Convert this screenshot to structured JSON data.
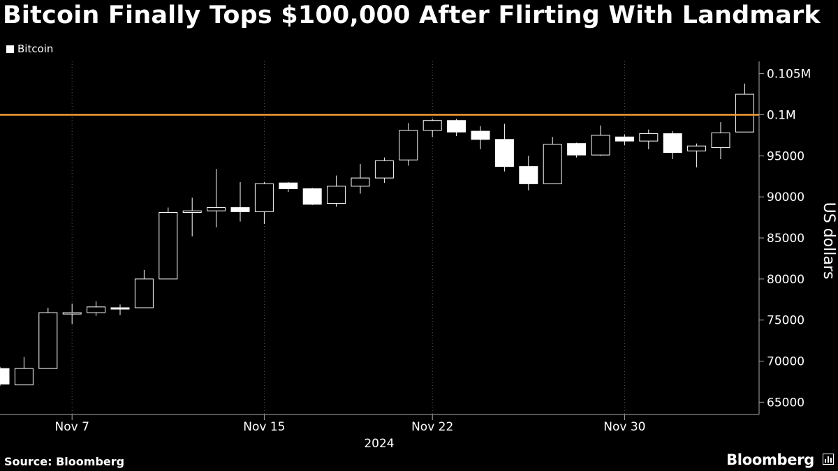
{
  "title": "Bitcoin Finally Tops $100,000 After Flirting With Landmark",
  "source": "Source: Bloomberg",
  "brand": "Bloomberg",
  "colors": {
    "background": "#000000",
    "candle": "#ffffff",
    "threshold": "#f7a034",
    "grid": "#555555"
  },
  "icons": {
    "brand": "bloomberg-chart-icon"
  },
  "chart_data": {
    "type": "candlestick",
    "legend": [
      "Bitcoin"
    ],
    "ylabel": "US dollars",
    "xlabel": "2024",
    "ylim": [
      63500,
      106500
    ],
    "y_ticks": [
      {
        "value": 65000,
        "label": "65000"
      },
      {
        "value": 70000,
        "label": "70000"
      },
      {
        "value": 75000,
        "label": "75000"
      },
      {
        "value": 80000,
        "label": "80000"
      },
      {
        "value": 85000,
        "label": "85000"
      },
      {
        "value": 90000,
        "label": "90000"
      },
      {
        "value": 95000,
        "label": "95000"
      },
      {
        "value": 100000,
        "label": "0.1M"
      },
      {
        "value": 105000,
        "label": "0.105M"
      }
    ],
    "x_ticks": [
      {
        "label": "Nov 7",
        "index": 3
      },
      {
        "label": "Nov 15",
        "index": 11
      },
      {
        "label": "Nov 22",
        "index": 18
      },
      {
        "label": "Nov 30",
        "index": 26
      }
    ],
    "threshold": {
      "value": 100000
    },
    "series": [
      {
        "name": "Bitcoin",
        "ohlc": [
          {
            "open": 69100,
            "high": 69300,
            "low": 67000,
            "close": 67200
          },
          {
            "open": 67100,
            "high": 70500,
            "low": 67100,
            "close": 69100
          },
          {
            "open": 69100,
            "high": 76500,
            "low": 69100,
            "close": 75900
          },
          {
            "open": 75900,
            "high": 77000,
            "low": 74500,
            "close": 75900
          },
          {
            "open": 75900,
            "high": 77300,
            "low": 75500,
            "close": 76600
          },
          {
            "open": 76500,
            "high": 76900,
            "low": 75600,
            "close": 76400
          },
          {
            "open": 76500,
            "high": 81100,
            "low": 76500,
            "close": 80000
          },
          {
            "open": 80000,
            "high": 88700,
            "low": 80000,
            "close": 88100
          },
          {
            "open": 88100,
            "high": 89900,
            "low": 85200,
            "close": 88300
          },
          {
            "open": 88300,
            "high": 93400,
            "low": 86300,
            "close": 88700
          },
          {
            "open": 88700,
            "high": 91800,
            "low": 87000,
            "close": 88200
          },
          {
            "open": 88200,
            "high": 91800,
            "low": 86700,
            "close": 91600
          },
          {
            "open": 91700,
            "high": 91800,
            "low": 90600,
            "close": 91000
          },
          {
            "open": 91000,
            "high": 91100,
            "low": 89000,
            "close": 89100
          },
          {
            "open": 89200,
            "high": 92600,
            "low": 88800,
            "close": 91300
          },
          {
            "open": 91300,
            "high": 94000,
            "low": 90400,
            "close": 92300
          },
          {
            "open": 92300,
            "high": 94800,
            "low": 91700,
            "close": 94400
          },
          {
            "open": 94500,
            "high": 99000,
            "low": 93800,
            "close": 98100
          },
          {
            "open": 98100,
            "high": 99500,
            "low": 97300,
            "close": 99300
          },
          {
            "open": 99300,
            "high": 99500,
            "low": 97400,
            "close": 97900
          },
          {
            "open": 98000,
            "high": 98600,
            "low": 95800,
            "close": 97000
          },
          {
            "open": 97000,
            "high": 98900,
            "low": 93100,
            "close": 93700
          },
          {
            "open": 93700,
            "high": 95000,
            "low": 90800,
            "close": 91600
          },
          {
            "open": 91600,
            "high": 97300,
            "low": 91600,
            "close": 96400
          },
          {
            "open": 96500,
            "high": 96600,
            "low": 94800,
            "close": 95100
          },
          {
            "open": 95100,
            "high": 98700,
            "low": 95000,
            "close": 97500
          },
          {
            "open": 97300,
            "high": 97600,
            "low": 96300,
            "close": 96800
          },
          {
            "open": 96800,
            "high": 98200,
            "low": 95800,
            "close": 97700
          },
          {
            "open": 97700,
            "high": 98000,
            "low": 94600,
            "close": 95400
          },
          {
            "open": 95600,
            "high": 96500,
            "low": 93600,
            "close": 96200
          },
          {
            "open": 96000,
            "high": 99100,
            "low": 94600,
            "close": 97800
          },
          {
            "open": 97900,
            "high": 103800,
            "low": 97900,
            "close": 102500
          }
        ]
      }
    ]
  }
}
